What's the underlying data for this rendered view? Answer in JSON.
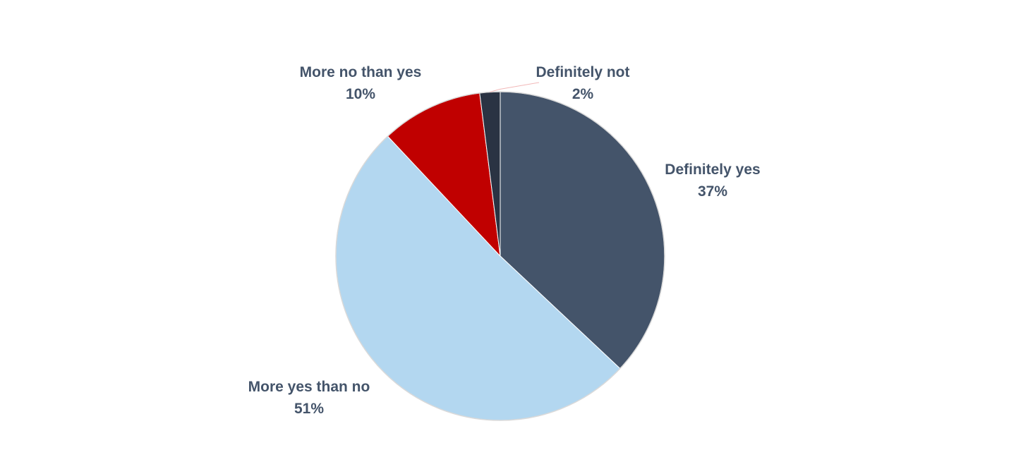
{
  "chart_data": {
    "type": "pie",
    "title": "",
    "start_angle_deg": 0,
    "direction": "clockwise",
    "slices": [
      {
        "label": "Definitely yes",
        "value": 37,
        "value_label": "37%",
        "color": "#44546a"
      },
      {
        "label": "More yes than no",
        "value": 51,
        "value_label": "51%",
        "color": "#b3d7f0"
      },
      {
        "label": "More no than yes",
        "value": 10,
        "value_label": "10%",
        "color": "#c00000"
      },
      {
        "label": "Definitely not",
        "value": 2,
        "value_label": "2%",
        "color": "#2a3343"
      }
    ],
    "legend": "none",
    "data_labels": "outside, category name and percentage"
  }
}
